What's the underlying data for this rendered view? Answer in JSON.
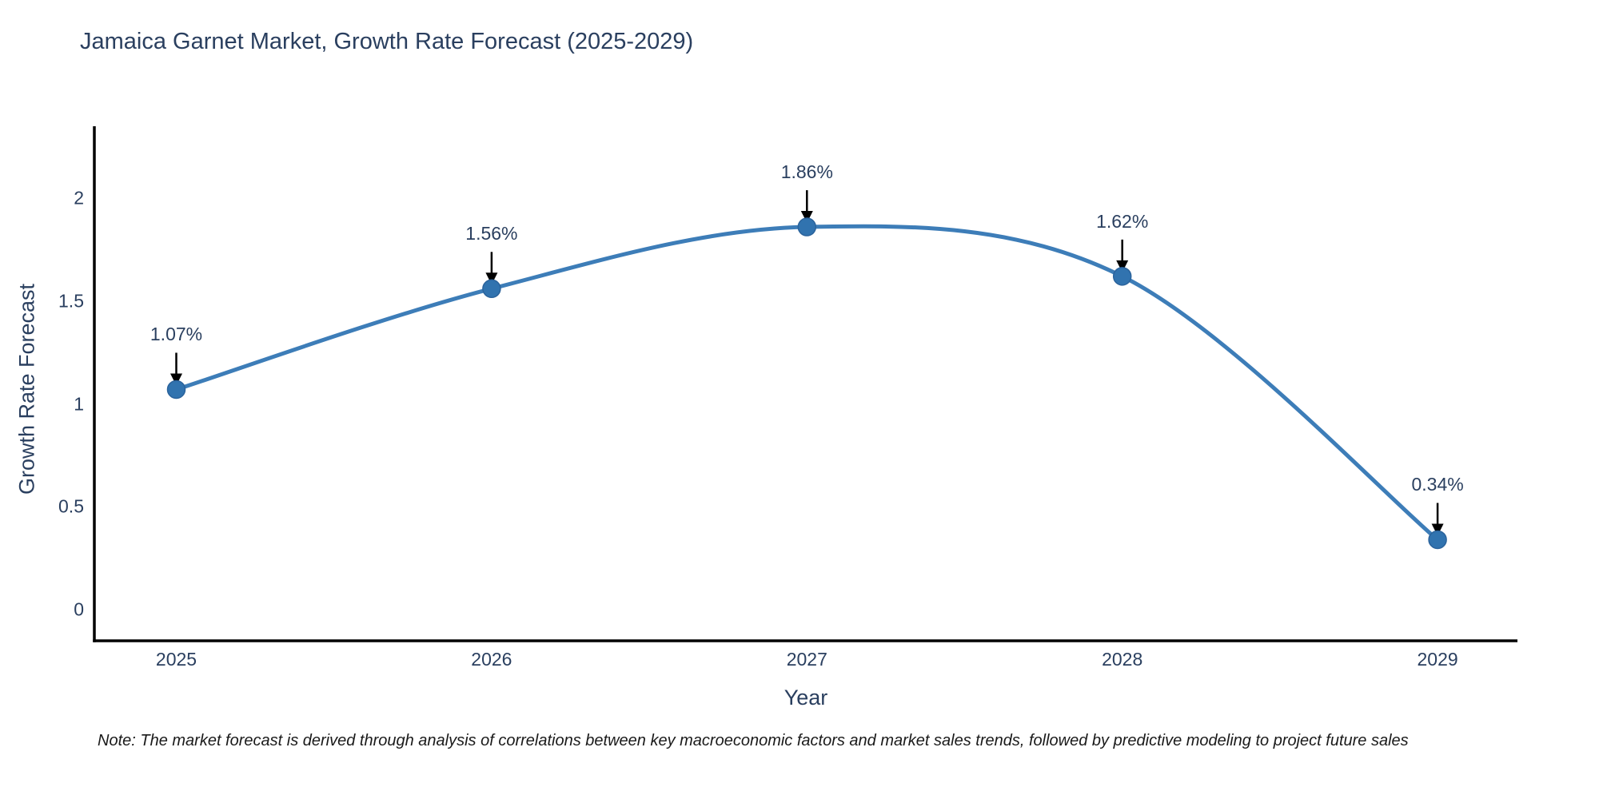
{
  "page_title": "Jamaica Garnet Market, Growth Rate Forecast (2025-2029)",
  "note": "Note: The market forecast is derived through analysis of correlations between key macroeconomic factors and market sales trends, followed by predictive modeling to project future sales",
  "chart_data": {
    "type": "line",
    "title": "Jamaica Garnet Market, Growth Rate Forecast (2025-2029)",
    "xlabel": "Year",
    "ylabel": "Growth Rate Forecast",
    "categories": [
      "2025",
      "2026",
      "2027",
      "2028",
      "2029"
    ],
    "values": [
      1.07,
      1.56,
      1.86,
      1.62,
      0.34
    ],
    "point_labels": [
      "1.07%",
      "1.56%",
      "1.86%",
      "1.62%",
      "0.34%"
    ],
    "y_ticks": [
      "0",
      "0.5",
      "1",
      "1.5",
      "2"
    ],
    "y_tick_values": [
      0,
      0.5,
      1,
      1.5,
      2
    ],
    "ylim": [
      -0.15,
      2.33
    ],
    "line_shape": "spline",
    "grid": false,
    "legend_position": "none",
    "colors": {
      "line": "#3d7db8",
      "marker_fill": "#3173af",
      "marker_edge": "#2b639c",
      "axis_line": "#000000",
      "text": "#2a3f5f",
      "annotation_arrow": "#000000",
      "note_text": "#1a1a1a",
      "background": "#ffffff"
    }
  }
}
